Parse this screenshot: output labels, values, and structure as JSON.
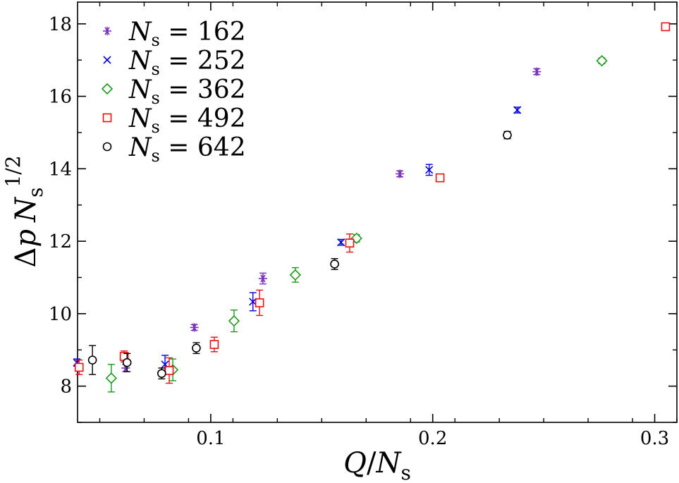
{
  "chart_data": {
    "type": "scatter",
    "title": "",
    "xlabel": {
      "main": "Q",
      "slash": "/",
      "var": "N",
      "sub": "s"
    },
    "ylabel": {
      "delta": "Δ",
      "p": "p",
      "var": "N",
      "sub": "s",
      "sup": "1/2"
    },
    "xlim": [
      0.04,
      0.31
    ],
    "ylim": [
      7.0,
      18.6
    ],
    "xticks": [
      0.1,
      0.2,
      0.3
    ],
    "xtick_labels": [
      "0.1",
      "0.2",
      "0.3"
    ],
    "yticks": [
      8,
      10,
      12,
      14,
      16,
      18
    ],
    "ytick_labels": [
      "8",
      "10",
      "12",
      "14",
      "16",
      "18"
    ],
    "legend_position": "top-left",
    "legend_equals": "=",
    "series": [
      {
        "name": "N_s = 162",
        "label_var": "N",
        "label_sub": "s",
        "label_value": "162",
        "marker": "asterisk",
        "color": "#7b2fbf",
        "points": [
          {
            "x": 0.0617,
            "y": 8.5,
            "err": 0.1
          },
          {
            "x": 0.0926,
            "y": 9.62,
            "err": 0.08
          },
          {
            "x": 0.1235,
            "y": 10.97,
            "err": 0.15
          },
          {
            "x": 0.1852,
            "y": 13.86,
            "err": 0.08
          },
          {
            "x": 0.2469,
            "y": 16.68,
            "err": 0.08
          }
        ]
      },
      {
        "name": "N_s = 252",
        "label_var": "N",
        "label_sub": "s",
        "label_value": "252",
        "marker": "x",
        "color": "#0000e0",
        "points": [
          {
            "x": 0.0397,
            "y": 8.65,
            "err": 0.1
          },
          {
            "x": 0.0794,
            "y": 8.6,
            "err": 0.25
          },
          {
            "x": 0.119,
            "y": 10.33,
            "err": 0.25
          },
          {
            "x": 0.1587,
            "y": 11.97,
            "err": 0.08
          },
          {
            "x": 0.1984,
            "y": 13.97,
            "err": 0.15
          },
          {
            "x": 0.2381,
            "y": 15.62,
            "err": 0.08
          }
        ]
      },
      {
        "name": "N_s = 362",
        "label_var": "N",
        "label_sub": "s",
        "label_value": "362",
        "marker": "diamond",
        "color": "#1a9a1a",
        "points": [
          {
            "x": 0.0552,
            "y": 8.22,
            "err": 0.38
          },
          {
            "x": 0.0829,
            "y": 8.45,
            "err": 0.3
          },
          {
            "x": 0.1105,
            "y": 9.8,
            "err": 0.3
          },
          {
            "x": 0.1381,
            "y": 11.07,
            "err": 0.2
          },
          {
            "x": 0.1657,
            "y": 12.08,
            "err": 0.1
          },
          {
            "x": 0.2762,
            "y": 16.98,
            "err": 0.08
          }
        ]
      },
      {
        "name": "N_s = 492",
        "label_var": "N",
        "label_sub": "s",
        "label_value": "492",
        "marker": "square",
        "color": "#e81010",
        "points": [
          {
            "x": 0.0407,
            "y": 8.52,
            "err": 0.2
          },
          {
            "x": 0.061,
            "y": 8.82,
            "err": 0.15
          },
          {
            "x": 0.0813,
            "y": 8.43,
            "err": 0.35
          },
          {
            "x": 0.1016,
            "y": 9.15,
            "err": 0.2
          },
          {
            "x": 0.122,
            "y": 10.3,
            "err": 0.35
          },
          {
            "x": 0.1626,
            "y": 11.95,
            "err": 0.25
          },
          {
            "x": 0.2033,
            "y": 13.75,
            "err": 0.1
          },
          {
            "x": 0.3049,
            "y": 17.92,
            "err": 0.08
          }
        ]
      },
      {
        "name": "N_s = 642",
        "label_var": "N",
        "label_sub": "s",
        "label_value": "642",
        "marker": "circle",
        "color": "#000000",
        "points": [
          {
            "x": 0.0467,
            "y": 8.72,
            "err": 0.4
          },
          {
            "x": 0.0623,
            "y": 8.65,
            "err": 0.25
          },
          {
            "x": 0.0779,
            "y": 8.35,
            "err": 0.15
          },
          {
            "x": 0.0935,
            "y": 9.05,
            "err": 0.15
          },
          {
            "x": 0.1558,
            "y": 11.37,
            "err": 0.15
          },
          {
            "x": 0.2336,
            "y": 14.93,
            "err": 0.1
          }
        ]
      }
    ]
  }
}
